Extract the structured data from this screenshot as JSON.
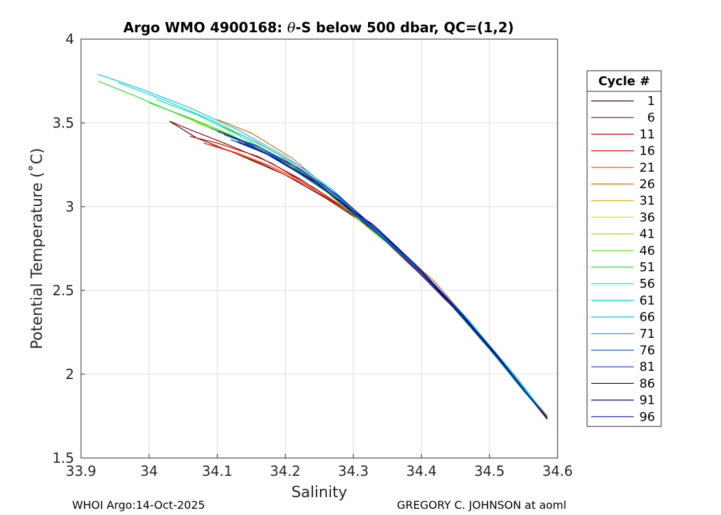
{
  "chart_data": {
    "type": "line",
    "title_prefix": "Argo WMO 4900168: ",
    "title_theta": "θ",
    "title_suffix": "-S below 500 dbar,  QC=(1,2)",
    "xlabel": "Salinity",
    "ylabel": "Potential Temperature (˚C)",
    "xlim": [
      33.9,
      34.6
    ],
    "ylim": [
      1.5,
      4
    ],
    "x_ticks": [
      "33.9",
      "34",
      "34.1",
      "34.2",
      "34.3",
      "34.4",
      "34.5",
      "34.6"
    ],
    "y_ticks": [
      "1.5",
      "2",
      "2.5",
      "3",
      "3.5",
      "4"
    ],
    "grid": true,
    "legend_position": "right",
    "legend_title": "Cycle #",
    "series": [
      {
        "name": "1",
        "color": "#3a0000",
        "points": [
          [
            34.03,
            3.51
          ],
          [
            34.07,
            3.41
          ],
          [
            34.12,
            3.33
          ],
          [
            34.2,
            3.19
          ],
          [
            34.26,
            3.05
          ],
          [
            34.32,
            2.89
          ],
          [
            34.39,
            2.64
          ],
          [
            34.46,
            2.35
          ],
          [
            34.52,
            2.06
          ],
          [
            34.585,
            1.73
          ]
        ]
      },
      {
        "name": "6",
        "color": "#8b0000",
        "points": [
          [
            34.03,
            3.51
          ],
          [
            34.06,
            3.46
          ],
          [
            34.11,
            3.38
          ],
          [
            34.18,
            3.26
          ],
          [
            34.25,
            3.09
          ],
          [
            34.32,
            2.9
          ],
          [
            34.39,
            2.65
          ],
          [
            34.46,
            2.36
          ],
          [
            34.52,
            2.06
          ],
          [
            34.585,
            1.73
          ]
        ]
      },
      {
        "name": "11",
        "color": "#c00000",
        "points": [
          [
            34.06,
            3.42
          ],
          [
            34.1,
            3.38
          ],
          [
            34.16,
            3.3
          ],
          [
            34.22,
            3.17
          ],
          [
            34.28,
            3.01
          ],
          [
            34.34,
            2.82
          ],
          [
            34.4,
            2.59
          ],
          [
            34.47,
            2.3
          ],
          [
            34.53,
            2.01
          ],
          [
            34.585,
            1.73
          ]
        ]
      },
      {
        "name": "16",
        "color": "#e01000",
        "points": [
          [
            34.08,
            3.38
          ],
          [
            34.12,
            3.33
          ],
          [
            34.17,
            3.25
          ],
          [
            34.23,
            3.13
          ],
          [
            34.29,
            2.98
          ],
          [
            34.35,
            2.79
          ],
          [
            34.41,
            2.57
          ],
          [
            34.47,
            2.3
          ],
          [
            34.53,
            2.01
          ],
          [
            34.585,
            1.74
          ]
        ]
      },
      {
        "name": "21",
        "color": "#ff3a00",
        "points": [
          [
            34.09,
            3.37
          ],
          [
            34.13,
            3.32
          ],
          [
            34.18,
            3.24
          ],
          [
            34.24,
            3.12
          ],
          [
            34.3,
            2.96
          ],
          [
            34.36,
            2.77
          ],
          [
            34.42,
            2.55
          ],
          [
            34.48,
            2.27
          ],
          [
            34.54,
            1.98
          ],
          [
            34.585,
            1.74
          ]
        ]
      },
      {
        "name": "26",
        "color": "#e06000",
        "points": [
          [
            34.1,
            3.52
          ],
          [
            34.15,
            3.44
          ],
          [
            34.21,
            3.29
          ],
          [
            34.26,
            3.12
          ],
          [
            34.32,
            2.91
          ],
          [
            34.38,
            2.69
          ],
          [
            34.44,
            2.45
          ],
          [
            34.5,
            2.17
          ],
          [
            34.55,
            1.92
          ],
          [
            34.585,
            1.75
          ]
        ]
      },
      {
        "name": "31",
        "color": "#d0a000",
        "points": [
          [
            34.1,
            3.49
          ],
          [
            34.14,
            3.42
          ],
          [
            34.19,
            3.31
          ],
          [
            34.25,
            3.14
          ],
          [
            34.31,
            2.95
          ],
          [
            34.37,
            2.72
          ],
          [
            34.43,
            2.48
          ],
          [
            34.49,
            2.2
          ],
          [
            34.55,
            1.91
          ],
          [
            34.585,
            1.74
          ]
        ]
      },
      {
        "name": "36",
        "color": "#e0e000",
        "points": [
          [
            34.07,
            3.5
          ],
          [
            34.12,
            3.42
          ],
          [
            34.18,
            3.31
          ],
          [
            34.24,
            3.16
          ],
          [
            34.3,
            2.97
          ],
          [
            34.36,
            2.76
          ],
          [
            34.42,
            2.52
          ],
          [
            34.48,
            2.24
          ],
          [
            34.54,
            1.96
          ],
          [
            34.585,
            1.74
          ]
        ]
      },
      {
        "name": "41",
        "color": "#a0e000",
        "points": [
          [
            34.04,
            3.56
          ],
          [
            34.09,
            3.48
          ],
          [
            34.15,
            3.37
          ],
          [
            34.22,
            3.21
          ],
          [
            34.28,
            3.03
          ],
          [
            34.34,
            2.82
          ],
          [
            34.4,
            2.6
          ],
          [
            34.47,
            2.31
          ],
          [
            34.53,
            2.02
          ],
          [
            34.585,
            1.74
          ]
        ]
      },
      {
        "name": "46",
        "color": "#50e000",
        "points": [
          [
            34.0,
            3.62
          ],
          [
            34.06,
            3.53
          ],
          [
            34.12,
            3.43
          ],
          [
            34.19,
            3.28
          ],
          [
            34.26,
            3.09
          ],
          [
            34.32,
            2.88
          ],
          [
            34.39,
            2.65
          ],
          [
            34.46,
            2.36
          ],
          [
            34.52,
            2.06
          ],
          [
            34.585,
            1.74
          ]
        ]
      },
      {
        "name": "51",
        "color": "#10e030",
        "points": [
          [
            33.925,
            3.75
          ],
          [
            33.98,
            3.66
          ],
          [
            34.05,
            3.54
          ],
          [
            34.12,
            3.42
          ],
          [
            34.19,
            3.28
          ],
          [
            34.26,
            3.1
          ],
          [
            34.33,
            2.87
          ],
          [
            34.4,
            2.61
          ],
          [
            34.47,
            2.32
          ],
          [
            34.53,
            2.02
          ],
          [
            34.585,
            1.74
          ]
        ]
      },
      {
        "name": "56",
        "color": "#00e090",
        "points": [
          [
            34.01,
            3.64
          ],
          [
            34.07,
            3.55
          ],
          [
            34.13,
            3.43
          ],
          [
            34.2,
            3.27
          ],
          [
            34.27,
            3.07
          ],
          [
            34.33,
            2.86
          ],
          [
            34.4,
            2.62
          ],
          [
            34.47,
            2.32
          ],
          [
            34.53,
            2.02
          ],
          [
            34.585,
            1.74
          ]
        ]
      },
      {
        "name": "61",
        "color": "#00d8d0",
        "points": [
          [
            33.955,
            3.74
          ],
          [
            34.02,
            3.64
          ],
          [
            34.09,
            3.52
          ],
          [
            34.16,
            3.38
          ],
          [
            34.23,
            3.22
          ],
          [
            34.29,
            3.02
          ],
          [
            34.35,
            2.8
          ],
          [
            34.41,
            2.56
          ],
          [
            34.48,
            2.27
          ],
          [
            34.54,
            1.98
          ],
          [
            34.585,
            1.74
          ]
        ]
      },
      {
        "name": "66",
        "color": "#00c0f0",
        "points": [
          [
            33.925,
            3.79
          ],
          [
            33.99,
            3.7
          ],
          [
            34.06,
            3.59
          ],
          [
            34.13,
            3.46
          ],
          [
            34.2,
            3.3
          ],
          [
            34.27,
            3.1
          ],
          [
            34.33,
            2.87
          ],
          [
            34.4,
            2.62
          ],
          [
            34.47,
            2.32
          ],
          [
            34.53,
            2.02
          ],
          [
            34.585,
            1.74
          ]
        ]
      },
      {
        "name": "71",
        "color": "#0090a0",
        "points": [
          [
            34.09,
            3.47
          ],
          [
            34.14,
            3.39
          ],
          [
            34.2,
            3.27
          ],
          [
            34.26,
            3.1
          ],
          [
            34.32,
            2.9
          ],
          [
            34.38,
            2.68
          ],
          [
            34.44,
            2.43
          ],
          [
            34.5,
            2.15
          ],
          [
            34.55,
            1.9
          ],
          [
            34.585,
            1.74
          ]
        ]
      },
      {
        "name": "76",
        "color": "#0060c0",
        "points": [
          [
            34.11,
            3.43
          ],
          [
            34.16,
            3.35
          ],
          [
            34.22,
            3.22
          ],
          [
            34.28,
            3.05
          ],
          [
            34.33,
            2.86
          ],
          [
            34.39,
            2.64
          ],
          [
            34.45,
            2.39
          ],
          [
            34.51,
            2.11
          ],
          [
            34.56,
            1.86
          ],
          [
            34.585,
            1.74
          ]
        ]
      },
      {
        "name": "81",
        "color": "#0030e0",
        "points": [
          [
            34.12,
            3.4
          ],
          [
            34.17,
            3.32
          ],
          [
            34.22,
            3.2
          ],
          [
            34.28,
            3.04
          ],
          [
            34.34,
            2.84
          ],
          [
            34.4,
            2.61
          ],
          [
            34.46,
            2.36
          ],
          [
            34.51,
            2.11
          ],
          [
            34.56,
            1.86
          ],
          [
            34.585,
            1.74
          ]
        ]
      },
      {
        "name": "86",
        "color": "#0000b0",
        "points": [
          [
            34.1,
            3.45
          ],
          [
            34.16,
            3.36
          ],
          [
            34.22,
            3.23
          ],
          [
            34.28,
            3.06
          ],
          [
            34.33,
            2.88
          ],
          [
            34.39,
            2.66
          ],
          [
            34.45,
            2.4
          ],
          [
            34.51,
            2.12
          ],
          [
            34.56,
            1.86
          ],
          [
            34.585,
            1.74
          ]
        ]
      },
      {
        "name": "91",
        "color": "#000070",
        "points": [
          [
            34.13,
            3.39
          ],
          [
            34.18,
            3.3
          ],
          [
            34.24,
            3.16
          ],
          [
            34.29,
            3.0
          ],
          [
            34.33,
            2.89
          ],
          [
            34.39,
            2.66
          ],
          [
            34.45,
            2.39
          ],
          [
            34.51,
            2.11
          ],
          [
            34.56,
            1.86
          ],
          [
            34.585,
            1.74
          ]
        ]
      },
      {
        "name": "96",
        "color": "#0010a0",
        "points": [
          [
            34.14,
            3.38
          ],
          [
            34.19,
            3.28
          ],
          [
            34.25,
            3.13
          ],
          [
            34.3,
            2.96
          ],
          [
            34.35,
            2.79
          ],
          [
            34.41,
            2.56
          ],
          [
            34.47,
            2.3
          ],
          [
            34.52,
            2.06
          ],
          [
            34.56,
            1.86
          ],
          [
            34.585,
            1.74
          ]
        ]
      }
    ]
  },
  "footer": {
    "left": "WHOI Argo:14-Oct-2025",
    "right": "GREGORY C. JOHNSON at aoml"
  }
}
